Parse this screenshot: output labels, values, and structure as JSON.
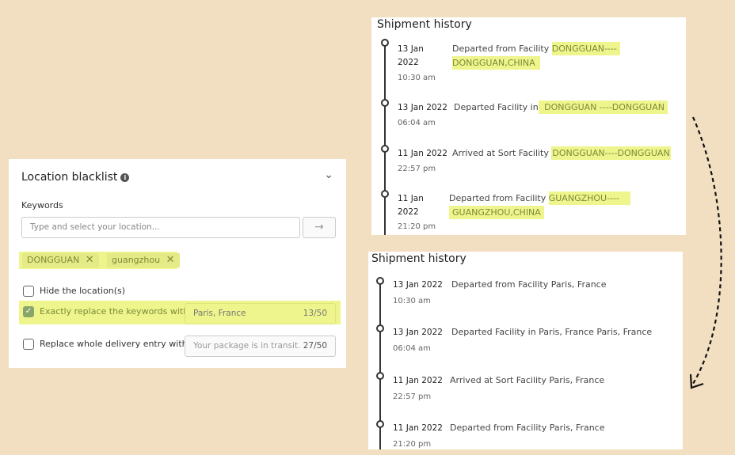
{
  "blacklist": {
    "title": "Location blacklist",
    "keywords_label": "Keywords",
    "input_placeholder": "Type and select your location...",
    "submit_icon": "arrow-right-icon",
    "tags": [
      "DONGGUAN",
      "guangzhou"
    ],
    "options": [
      {
        "label": "Hide the location(s)",
        "checked": false
      },
      {
        "label": "Exactly replace the keywords with",
        "checked": true,
        "value": "Paris, France",
        "count": "13/50"
      },
      {
        "label": "Replace whole delivery entry with",
        "checked": false,
        "placeholder": "Your package is in transit.",
        "count": "27/50"
      }
    ]
  },
  "before": {
    "title": "Shipment history",
    "events": [
      {
        "date1": "13 Jan",
        "date2": "2022",
        "time": "10:30 am",
        "text": "Departed from Facility ",
        "hl1": "DONGGUAN----",
        "hl2": "DONGGUAN,CHINA"
      },
      {
        "date1": "13 Jan 2022",
        "time": "06:04 am",
        "text": "Departed Facility in",
        "hl1": " DONGGUAN ----DONGGUAN"
      },
      {
        "date1": "11 Jan 2022",
        "time": "22:57 pm",
        "text": "Arrived at Sort Facility ",
        "hl1": "DONGGUAN----DONGGUAN"
      },
      {
        "date1": "11 Jan",
        "date2": "2022",
        "time": "21:20 pm",
        "text": "Departed from Facility ",
        "hl1": "GUANGZHOU----",
        "hl2": "GUANGZHOU,CHINA"
      }
    ]
  },
  "after": {
    "title": "Shipment history",
    "events": [
      {
        "date": "13 Jan 2022",
        "time": "10:30 am",
        "text": "Departed from Facility Paris, France"
      },
      {
        "date": "13 Jan 2022",
        "time": "06:04 am",
        "text": "Departed Facility in Paris, France Paris, France"
      },
      {
        "date": "11 Jan 2022",
        "time": "22:57 pm",
        "text": "Arrived at Sort Facility Paris, France"
      },
      {
        "date": "11 Jan 2022",
        "time": "21:20 pm",
        "text": "Departed from Facility Paris, France"
      }
    ]
  },
  "colors": {
    "background": "#f2dfc1",
    "highlight": "#eef58c",
    "check": "#8aa56a"
  }
}
